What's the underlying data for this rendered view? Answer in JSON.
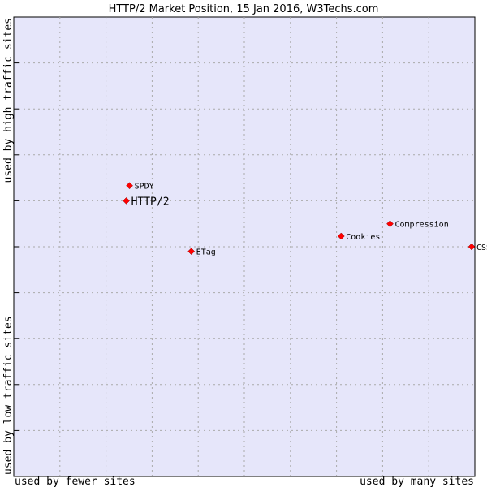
{
  "chart_data": {
    "type": "scatter",
    "title": "HTTP/2 Market Position, 15 Jan 2016, W3Techs.com",
    "xlabel_left": "used by fewer sites",
    "xlabel_right": "used by many sites",
    "ylabel_top": "used by high traffic sites",
    "ylabel_bottom": "used by low traffic sites",
    "xlim": [
      0,
      10
    ],
    "ylim": [
      0,
      10
    ],
    "grid": true,
    "points": [
      {
        "label": "SPDY",
        "x": 2.51,
        "y": 6.33,
        "highlight": false
      },
      {
        "label": "HTTP/2",
        "x": 2.44,
        "y": 6.0,
        "highlight": true
      },
      {
        "label": "ETag",
        "x": 3.85,
        "y": 4.9,
        "highlight": false
      },
      {
        "label": "Cookies",
        "x": 7.1,
        "y": 5.23,
        "highlight": false
      },
      {
        "label": "Compression",
        "x": 8.16,
        "y": 5.5,
        "highlight": false
      },
      {
        "label": "CSS",
        "x": 9.93,
        "y": 5.0,
        "highlight": false
      }
    ]
  },
  "colors": {
    "plot_bg": "#e6e6fa",
    "grid": "#aaaaaa",
    "marker": "#ff0000",
    "marker_edge": "#880000"
  }
}
